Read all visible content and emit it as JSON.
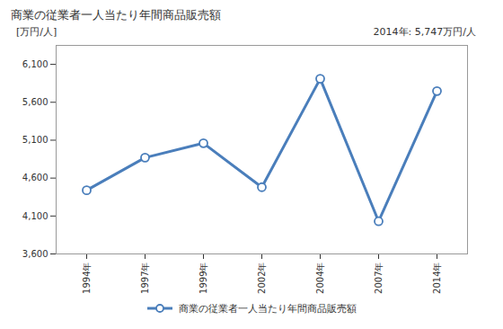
{
  "chart_data": {
    "type": "line",
    "title": "商業の従業者一人当たり年間商品販売額",
    "y_label": "[万円/人]",
    "annotation": "2014年: 5,747万円/人",
    "categories": [
      "1994年",
      "1997年",
      "1999年",
      "2002年",
      "2004年",
      "2007年",
      "2014年"
    ],
    "series": [
      {
        "name": "商業の従業者一人当たり年間商品販売額",
        "color": "#4a7ebb",
        "values": [
          4440,
          4870,
          5060,
          4480,
          5910,
          4030,
          5747
        ]
      }
    ],
    "marker": "circle",
    "ylim": [
      3600,
      6350
    ],
    "yticks": [
      {
        "value": 3600,
        "label": "3,600"
      },
      {
        "value": 4100,
        "label": "4,100"
      },
      {
        "value": 4600,
        "label": "4,600"
      },
      {
        "value": 5100,
        "label": "5,100"
      },
      {
        "value": 5600,
        "label": "5,600"
      },
      {
        "value": 6100,
        "label": "6,100"
      }
    ],
    "grid": false
  }
}
